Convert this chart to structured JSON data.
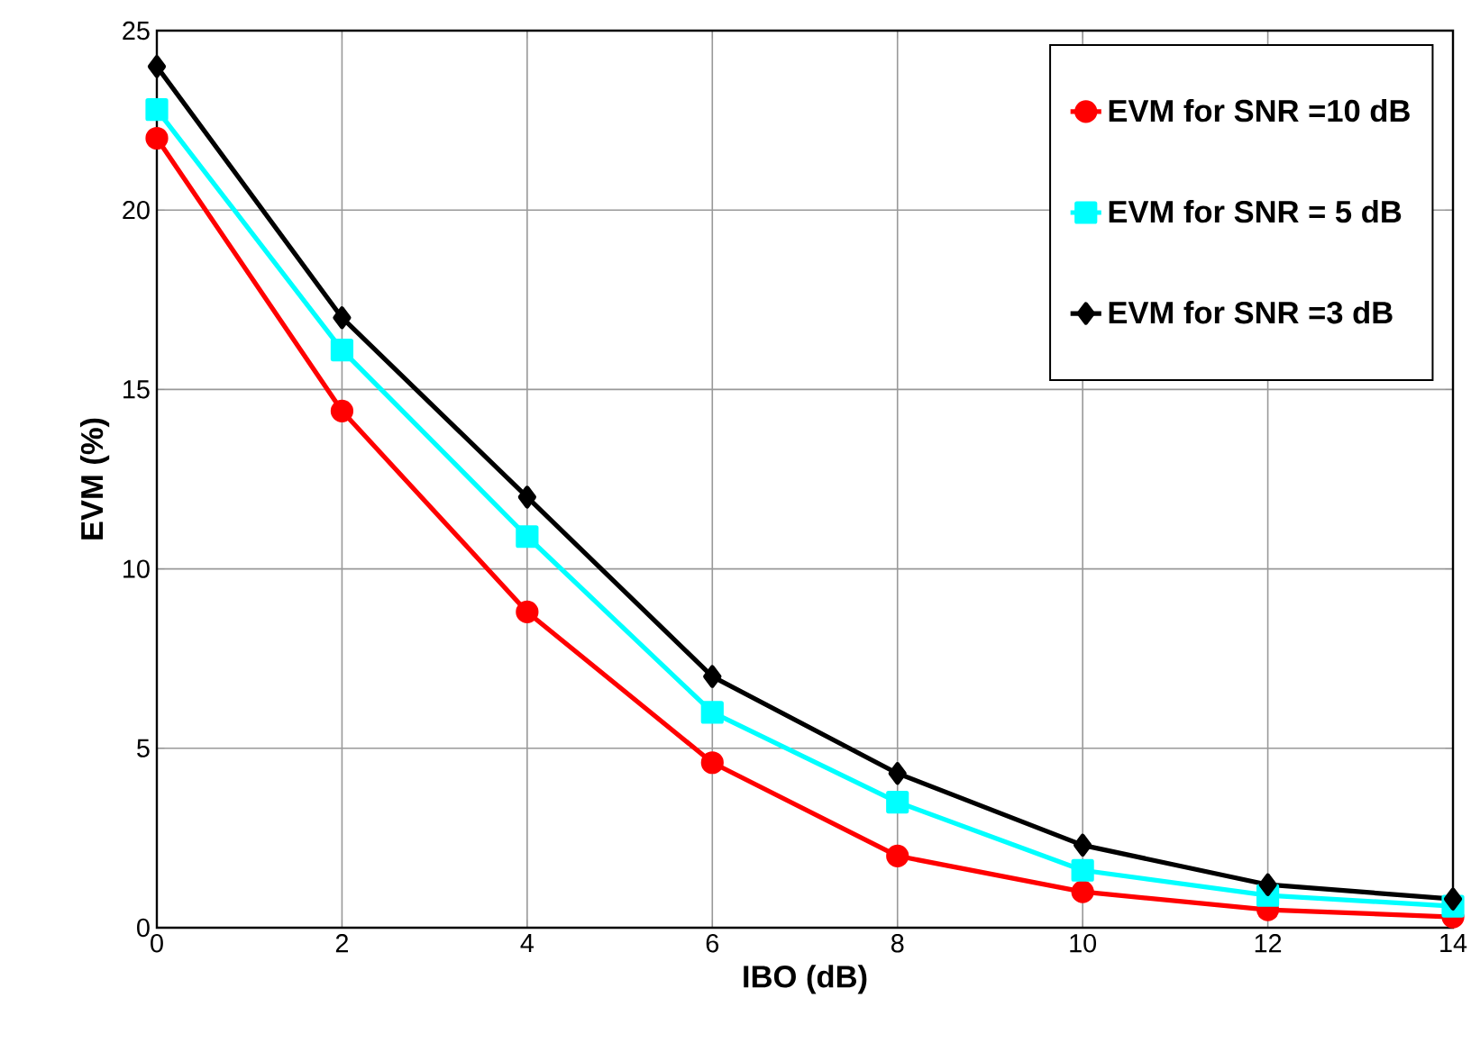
{
  "chart_data": {
    "type": "line",
    "xlabel": "IBO (dB)",
    "ylabel": "EVM (%)",
    "x": [
      0,
      2,
      4,
      6,
      8,
      10,
      12,
      14
    ],
    "series": [
      {
        "name": "EVM for SNR =10 dB",
        "color": "#ff0000",
        "marker": "circle",
        "values": [
          22.0,
          14.4,
          8.8,
          4.6,
          2.0,
          1.0,
          0.5,
          0.3
        ]
      },
      {
        "name": "EVM for SNR = 5 dB",
        "color": "#00ffff",
        "marker": "square",
        "values": [
          22.8,
          16.1,
          10.9,
          6.0,
          3.5,
          1.6,
          0.9,
          0.6
        ]
      },
      {
        "name": "EVM for SNR =3 dB",
        "color": "#000000",
        "marker": "diamond",
        "values": [
          24.0,
          17.0,
          12.0,
          7.0,
          4.3,
          2.3,
          1.2,
          0.8
        ]
      }
    ],
    "xlim": [
      0,
      14
    ],
    "ylim": [
      0,
      25
    ],
    "xticks": [
      0,
      2,
      4,
      6,
      8,
      10,
      12,
      14
    ],
    "yticks": [
      0,
      5,
      10,
      15,
      20,
      25
    ],
    "grid": true,
    "legend": "top right",
    "line_style": "solid"
  }
}
